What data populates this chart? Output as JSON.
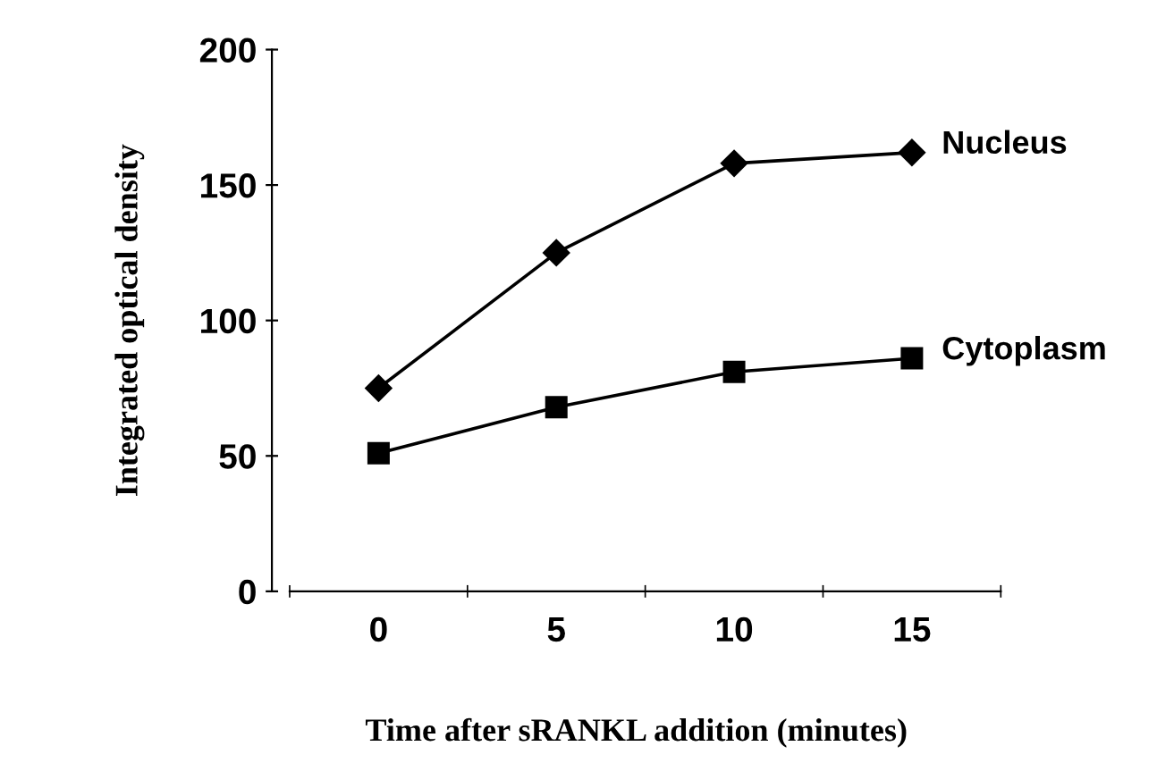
{
  "chart_data": {
    "type": "line",
    "xlabel": "Time after sRANKL addition (minutes)",
    "ylabel": "Integrated optical density",
    "categories": [
      "0",
      "5",
      "10",
      "15"
    ],
    "series": [
      {
        "name": "Nucleus",
        "color": "#000000",
        "marker": "diamond",
        "values": [
          75,
          125,
          158,
          162
        ]
      },
      {
        "name": "Cytoplasm",
        "color": "#000000",
        "marker": "square",
        "values": [
          51,
          68,
          81,
          86
        ]
      }
    ],
    "ylim": [
      0,
      200
    ],
    "yticks": [
      0,
      50,
      100,
      150,
      200
    ],
    "grid": false,
    "legend": false,
    "line_style": "solid"
  }
}
